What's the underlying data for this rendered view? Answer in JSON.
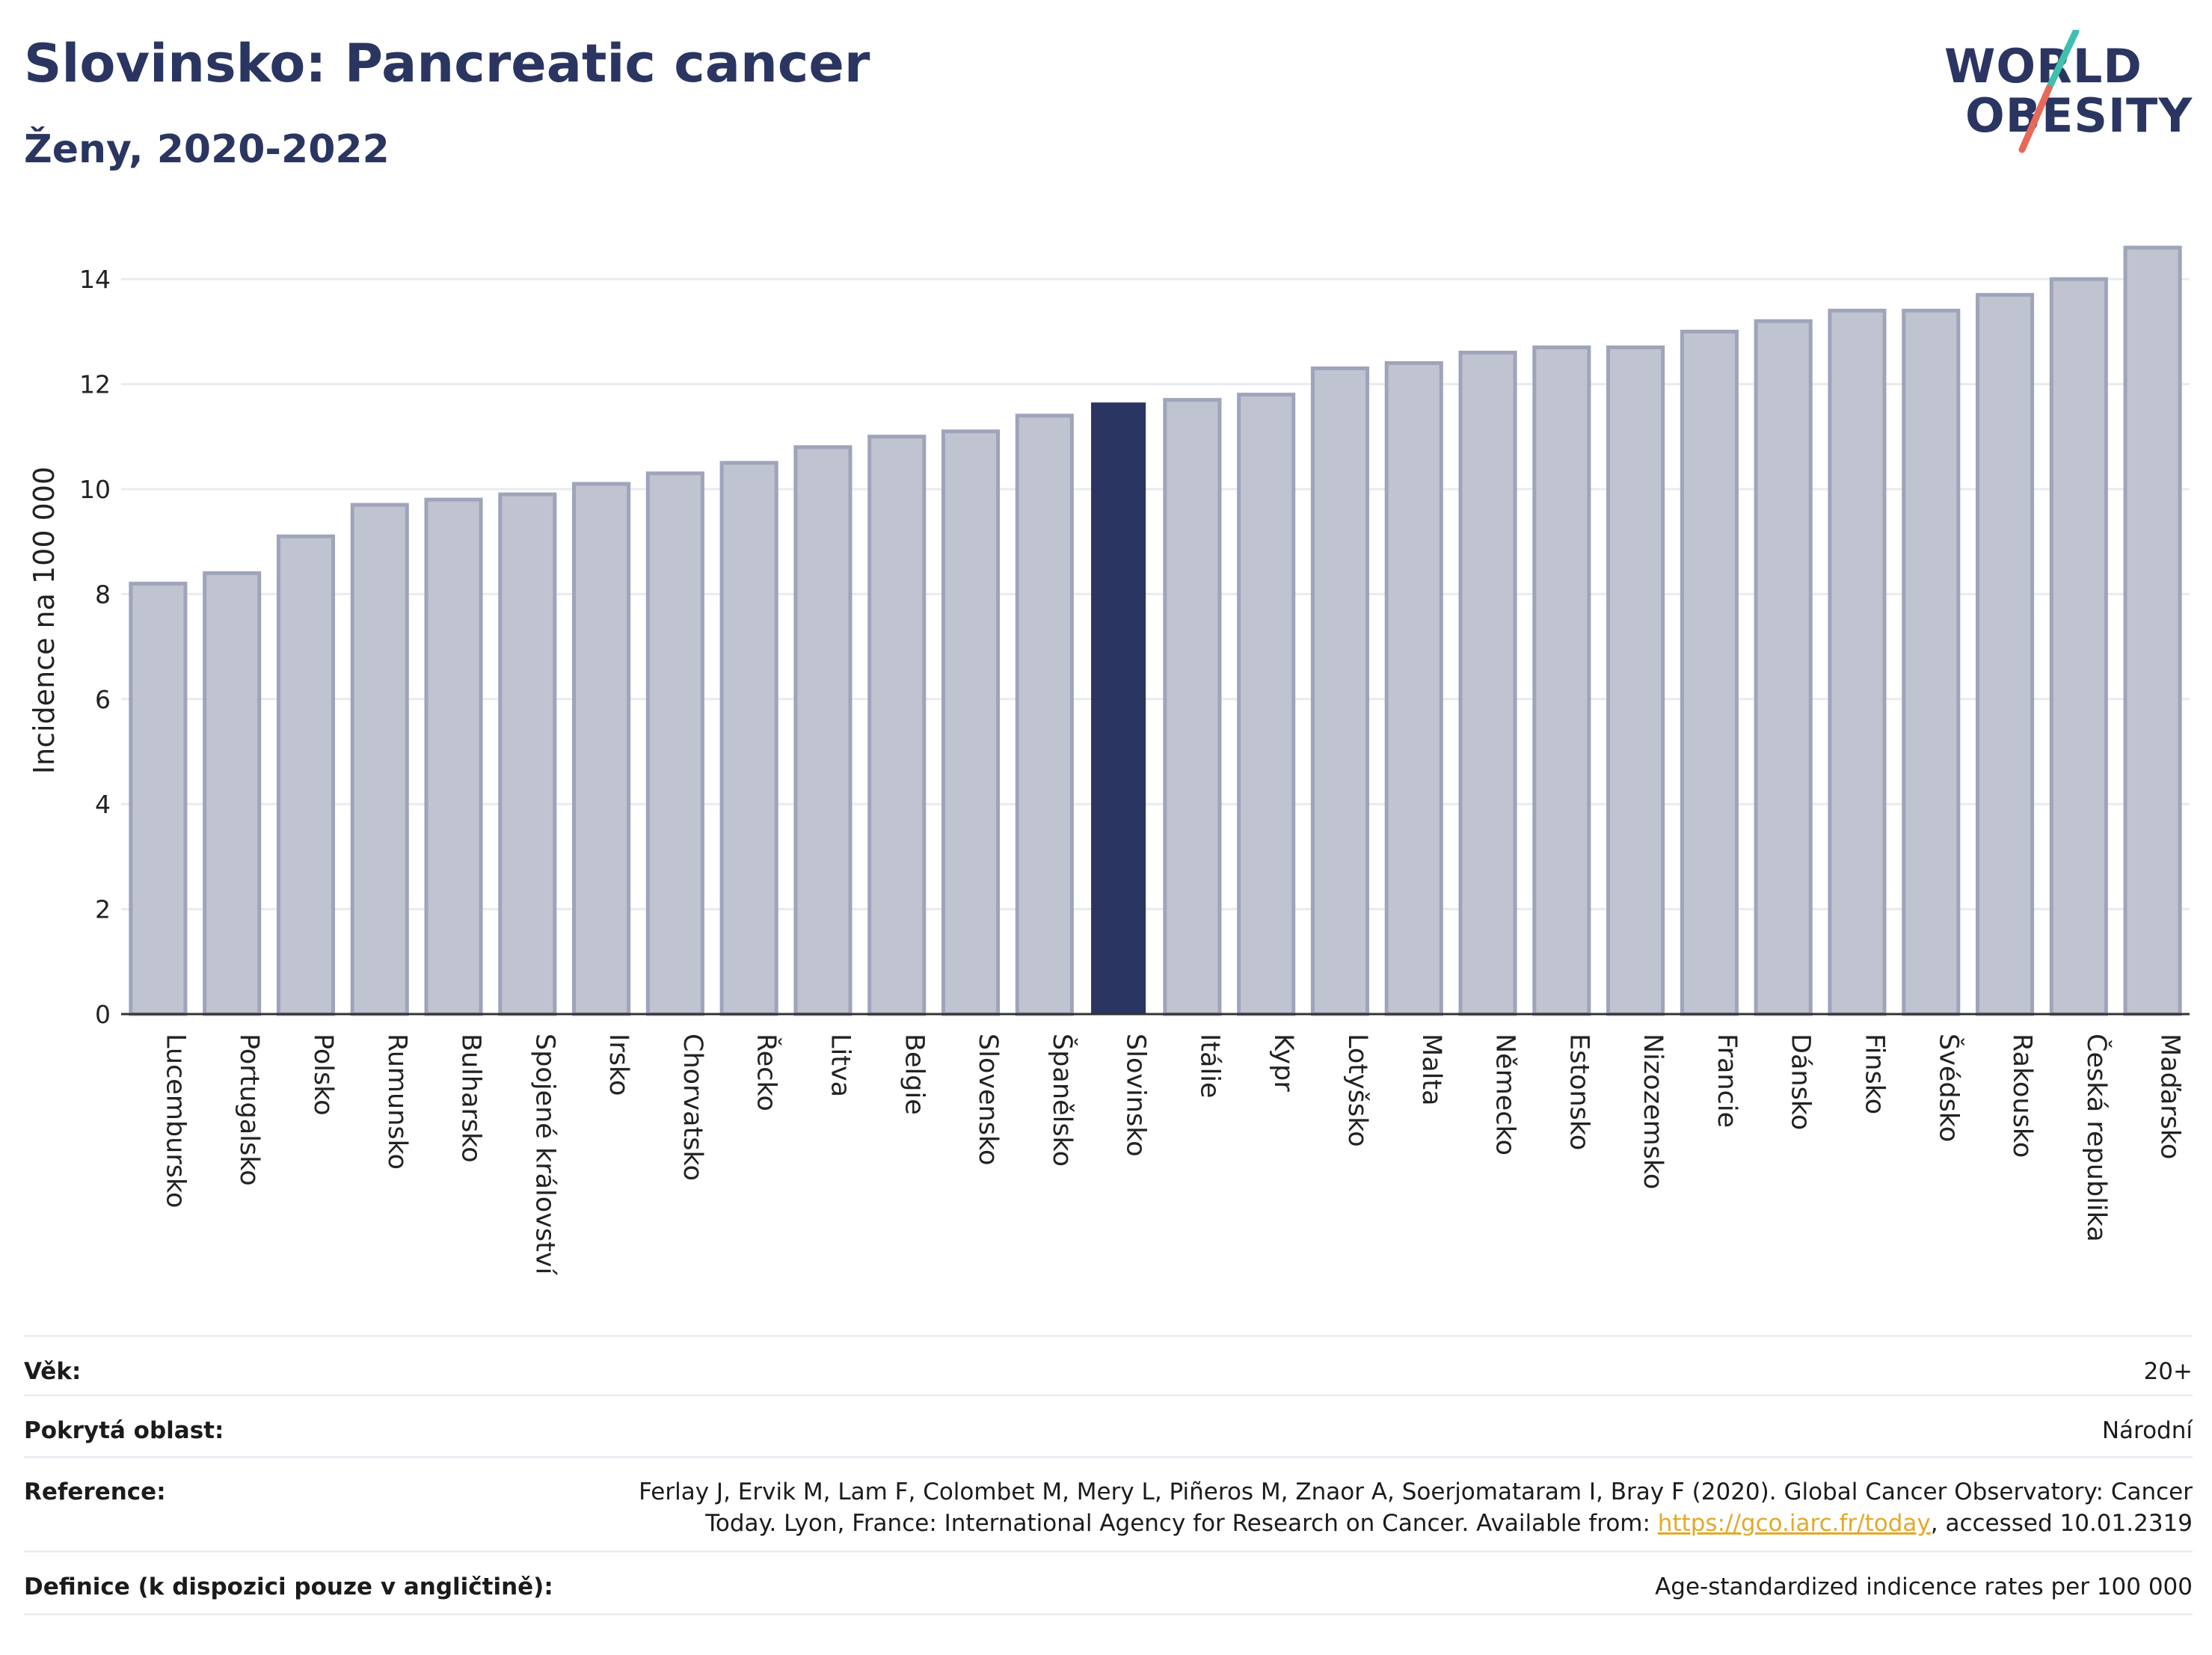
{
  "header": {
    "title": "Slovinsko: Pancreatic cancer",
    "subtitle": "Ženy, 2020-2022"
  },
  "logo": {
    "line1": "WORLD",
    "line2": "OBESITY",
    "slash_colors": [
      "#3fbfb0",
      "#e8685a"
    ]
  },
  "colors": {
    "bar": "#c0c3d0",
    "bar_border": "#9fa4ba",
    "highlight": "#2b3561",
    "text": "#2b3561",
    "grid": "#e9ebf0",
    "link": "#e3a92a"
  },
  "chart_data": {
    "type": "bar",
    "title": "Slovinsko: Pancreatic cancer",
    "subtitle": "Ženy, 2020-2022",
    "ylabel": "Incidence na 100 000",
    "xlabel": "",
    "ylim": [
      0,
      15
    ],
    "yticks": [
      0,
      2,
      4,
      6,
      8,
      10,
      12,
      14
    ],
    "grid": true,
    "highlight": "Slovinsko",
    "categories": [
      "Lucembursko",
      "Portugalsko",
      "Polsko",
      "Rumunsko",
      "Bulharsko",
      "Spojené království",
      "Irsko",
      "Chorvatsko",
      "Řecko",
      "Litva",
      "Belgie",
      "Slovensko",
      "Španělsko",
      "Slovinsko",
      "Itálie",
      "Kypr",
      "Lotyšsko",
      "Malta",
      "Německo",
      "Estonsko",
      "Nizozemsko",
      "Francie",
      "Dánsko",
      "Finsko",
      "Švédsko",
      "Rakousko",
      "Česká republika",
      "Maďarsko"
    ],
    "values": [
      8.2,
      8.4,
      9.1,
      9.7,
      9.8,
      9.9,
      10.1,
      10.3,
      10.5,
      10.8,
      11.0,
      11.1,
      11.4,
      11.65,
      11.7,
      11.8,
      12.3,
      12.4,
      12.6,
      12.7,
      12.7,
      13.0,
      13.2,
      13.4,
      13.4,
      13.7,
      14.0,
      14.6
    ]
  },
  "meta": {
    "age": {
      "label": "Věk:",
      "value": "20+"
    },
    "coverage": {
      "label": "Pokrytá oblast:",
      "value": "Národní"
    },
    "reference": {
      "label": "Reference:",
      "line1": "Ferlay J, Ervik M, Lam F, Colombet M, Mery L, Piñeros M, Znaor A, Soerjomataram I, Bray F (2020). Global Cancer Observatory: Cancer",
      "line2_before": "Today. Lyon, France: International Agency for Research on Cancer. Available from: ",
      "link": "https://gco.iarc.fr/today",
      "line2_after": ", accessed 10.01.2319"
    },
    "definition": {
      "label": "Definice (k dispozici pouze v angličtině):",
      "value": "Age-standardized indicence rates per 100 000"
    }
  }
}
